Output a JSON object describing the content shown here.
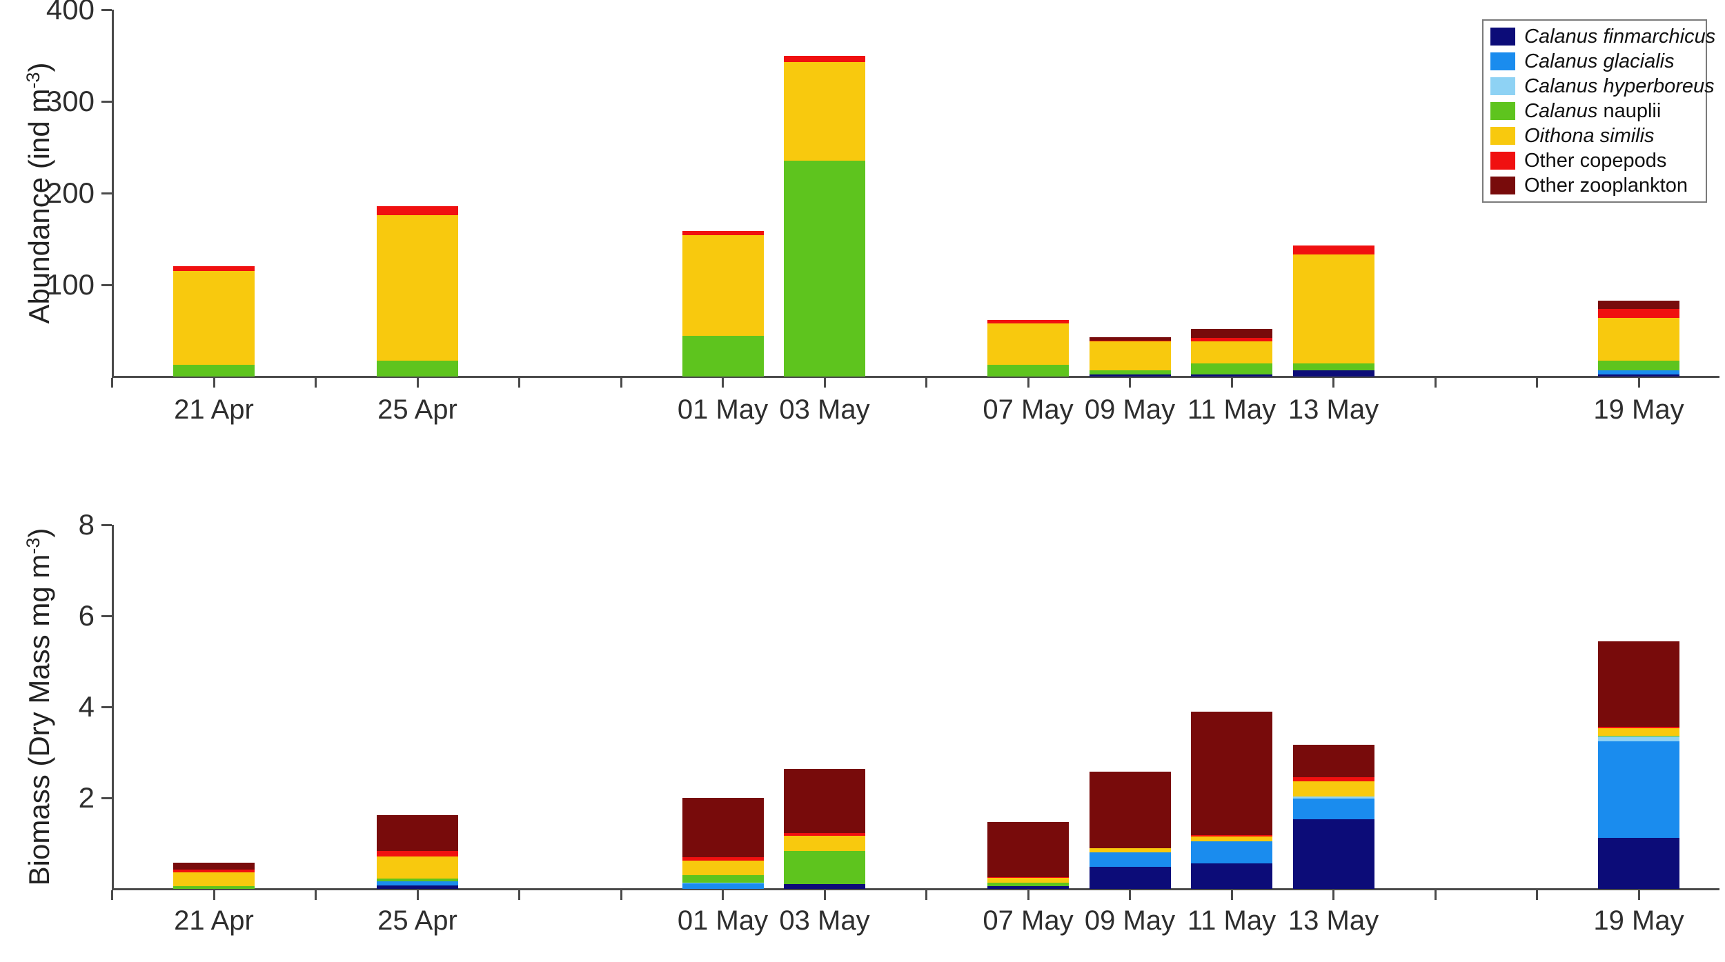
{
  "figure": {
    "abundance_ylabel": {
      "prefix": "Abundance (ind m",
      "sup": "-3",
      "suffix": ")"
    },
    "biomass_ylabel": {
      "prefix": "Biomass (Dry Mass mg m",
      "sup": "-3",
      "suffix": ")"
    }
  },
  "series": [
    {
      "key": "finmarchicus",
      "label_italic": "Calanus finmarchicus",
      "label_regular": "",
      "color": "#0c0c78"
    },
    {
      "key": "glacialis",
      "label_italic": "Calanus glacialis",
      "label_regular": "",
      "color": "#1a8cee"
    },
    {
      "key": "hyperboreus",
      "label_italic": "Calanus hyperboreus",
      "label_regular": "",
      "color": "#8ed2f4"
    },
    {
      "key": "nauplii",
      "label_italic": "Calanus",
      "label_regular": " nauplii",
      "color": "#5ec41e"
    },
    {
      "key": "similis",
      "label_italic": "Oithona similis",
      "label_regular": "",
      "color": "#f8c90e"
    },
    {
      "key": "copepods",
      "label_italic": "",
      "label_regular": "Other copepods",
      "color": "#f01010"
    },
    {
      "key": "zooplankton",
      "label_italic": "",
      "label_regular": "Other zooplankton",
      "color": "#780b0b"
    }
  ],
  "chart_data": [
    {
      "id": "abundance",
      "type": "bar",
      "stacked": true,
      "ylabel": "Abundance (ind m-3)",
      "ylim": [
        0,
        400
      ],
      "yticks": [
        100,
        200,
        300,
        400
      ],
      "grid": false,
      "legend_position": "top-right",
      "xtick_days": [
        -2,
        0,
        2,
        4,
        6,
        8,
        10,
        12,
        14,
        16,
        18,
        20,
        22,
        24,
        26,
        28
      ],
      "categories": [
        {
          "day": 0,
          "label": "21 Apr"
        },
        {
          "day": 4,
          "label": "25 Apr"
        },
        {
          "day": 10,
          "label": "01 May"
        },
        {
          "day": 12,
          "label": "03 May"
        },
        {
          "day": 16,
          "label": "07 May"
        },
        {
          "day": 18,
          "label": "09 May"
        },
        {
          "day": 20,
          "label": "11 May"
        },
        {
          "day": 22,
          "label": "13 May"
        },
        {
          "day": 28,
          "label": "19 May"
        }
      ],
      "bars": [
        {
          "day": 0,
          "label": "21 Apr",
          "total": 120,
          "values": {
            "nauplii": 13,
            "similis": 102,
            "copepods": 5
          }
        },
        {
          "day": 4,
          "label": "25 Apr",
          "total": 186,
          "values": {
            "nauplii": 17,
            "similis": 159,
            "copepods": 10
          }
        },
        {
          "day": 10,
          "label": "01 May",
          "total": 159,
          "values": {
            "nauplii": 44,
            "similis": 110,
            "copepods": 5
          }
        },
        {
          "day": 12,
          "label": "03 May",
          "total": 350,
          "values": {
            "nauplii": 235,
            "similis": 108,
            "copepods": 7
          }
        },
        {
          "day": 16,
          "label": "07 May",
          "total": 62,
          "values": {
            "nauplii": 13,
            "similis": 45,
            "copepods": 4
          }
        },
        {
          "day": 18,
          "label": "09 May",
          "total": 43,
          "values": {
            "finmarchicus": 2,
            "nauplii": 5,
            "similis": 31,
            "copepods": 1,
            "zooplankton": 4
          }
        },
        {
          "day": 20,
          "label": "11 May",
          "total": 52,
          "values": {
            "finmarchicus": 2,
            "nauplii": 12,
            "similis": 24,
            "copepods": 4,
            "zooplankton": 10
          }
        },
        {
          "day": 22,
          "label": "13 May",
          "total": 143,
          "values": {
            "finmarchicus": 7,
            "nauplii": 7,
            "similis": 119,
            "copepods": 10
          }
        },
        {
          "day": 28,
          "label": "19 May",
          "total": 83,
          "values": {
            "finmarchicus": 2.5,
            "glacialis": 4.5,
            "nauplii": 10,
            "similis": 47,
            "copepods": 10,
            "zooplankton": 9
          }
        }
      ]
    },
    {
      "id": "biomass",
      "type": "bar",
      "stacked": true,
      "ylabel": "Biomass (Dry Mass mg m-3)",
      "ylim": [
        0,
        8
      ],
      "yticks": [
        2,
        4,
        6,
        8
      ],
      "grid": false,
      "legend_position": "none",
      "xtick_days": [
        -2,
        0,
        2,
        4,
        6,
        8,
        10,
        12,
        14,
        16,
        18,
        20,
        22,
        24,
        26,
        28
      ],
      "categories": [
        {
          "day": 0,
          "label": "21 Apr"
        },
        {
          "day": 4,
          "label": "25 Apr"
        },
        {
          "day": 10,
          "label": "01 May"
        },
        {
          "day": 12,
          "label": "03 May"
        },
        {
          "day": 16,
          "label": "07 May"
        },
        {
          "day": 18,
          "label": "09 May"
        },
        {
          "day": 20,
          "label": "11 May"
        },
        {
          "day": 22,
          "label": "13 May"
        },
        {
          "day": 28,
          "label": "19 May"
        }
      ],
      "bars": [
        {
          "day": 0,
          "label": "21 Apr",
          "total": 0.57,
          "values": {
            "nauplii": 0.06,
            "similis": 0.3,
            "copepods": 0.06,
            "zooplankton": 0.15
          }
        },
        {
          "day": 4,
          "label": "25 Apr",
          "total": 1.62,
          "values": {
            "finmarchicus": 0.08,
            "glacialis": 0.09,
            "nauplii": 0.06,
            "similis": 0.48,
            "copepods": 0.12,
            "zooplankton": 0.79
          }
        },
        {
          "day": 10,
          "label": "01 May",
          "total": 2.0,
          "values": {
            "glacialis": 0.12,
            "hyperboreus": 0.02,
            "nauplii": 0.16,
            "similis": 0.32,
            "copepods": 0.08,
            "zooplankton": 1.3
          }
        },
        {
          "day": 12,
          "label": "03 May",
          "total": 2.64,
          "values": {
            "finmarchicus": 0.11,
            "nauplii": 0.72,
            "similis": 0.34,
            "copepods": 0.06,
            "zooplankton": 1.41
          }
        },
        {
          "day": 16,
          "label": "07 May",
          "total": 1.47,
          "values": {
            "finmarchicus": 0.06,
            "nauplii": 0.08,
            "similis": 0.1,
            "copepods": 0.02,
            "zooplankton": 1.21
          }
        },
        {
          "day": 18,
          "label": "09 May",
          "total": 2.58,
          "values": {
            "finmarchicus": 0.48,
            "glacialis": 0.32,
            "similis": 0.09,
            "zooplankton": 1.69
          }
        },
        {
          "day": 20,
          "label": "11 May",
          "total": 3.89,
          "values": {
            "finmarchicus": 0.56,
            "glacialis": 0.49,
            "similis": 0.1,
            "copepods": 0.03,
            "zooplankton": 2.71
          }
        },
        {
          "day": 22,
          "label": "13 May",
          "total": 3.17,
          "values": {
            "finmarchicus": 1.53,
            "glacialis": 0.45,
            "hyperboreus": 0.05,
            "similis": 0.33,
            "copepods": 0.09,
            "zooplankton": 0.72
          }
        },
        {
          "day": 28,
          "label": "19 May",
          "total": 5.44,
          "values": {
            "finmarchicus": 1.12,
            "glacialis": 2.12,
            "hyperboreus": 0.11,
            "nauplii": 0.02,
            "similis": 0.16,
            "copepods": 0.03,
            "zooplankton": 1.88
          }
        }
      ]
    }
  ]
}
